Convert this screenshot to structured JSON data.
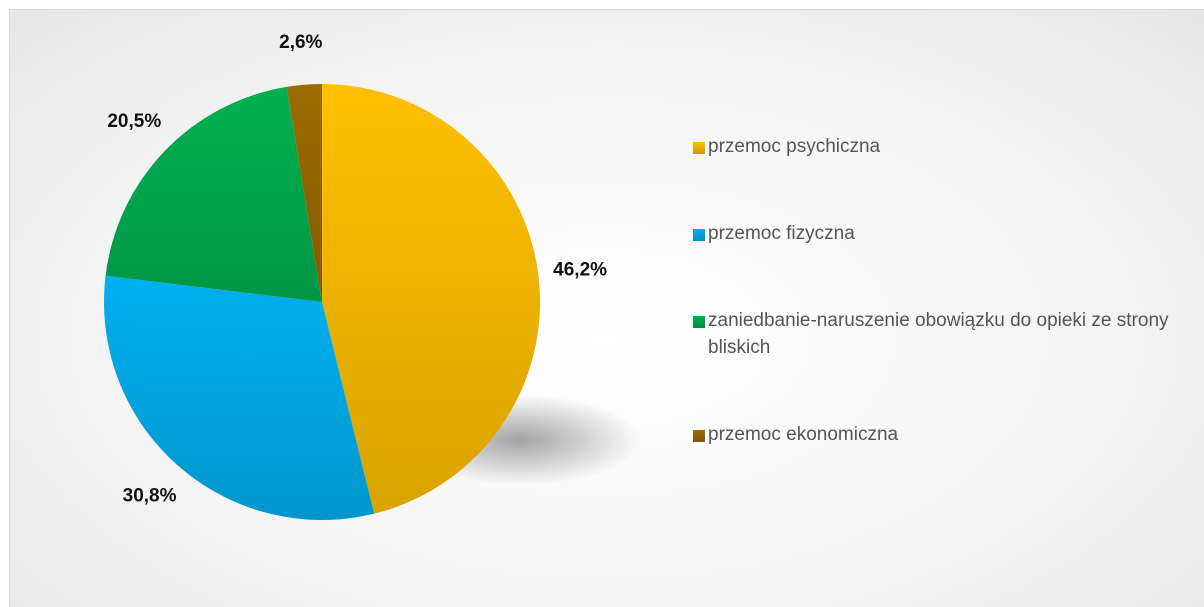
{
  "chart_data": {
    "type": "pie",
    "categories": [
      "przemoc psychiczna",
      "przemoc fizyczna",
      "zaniedbanie-naruszenie obowiązku do opieki ze strony bliskich",
      "przemoc ekonomiczna"
    ],
    "values": [
      46.2,
      30.8,
      20.5,
      2.6
    ],
    "value_labels": [
      "46,2%",
      "30,8%",
      "20,5%",
      "2,6%"
    ],
    "colors": [
      "#FFC000",
      "#00B0F0",
      "#00B050",
      "#9C6B00"
    ],
    "legend": "right"
  }
}
